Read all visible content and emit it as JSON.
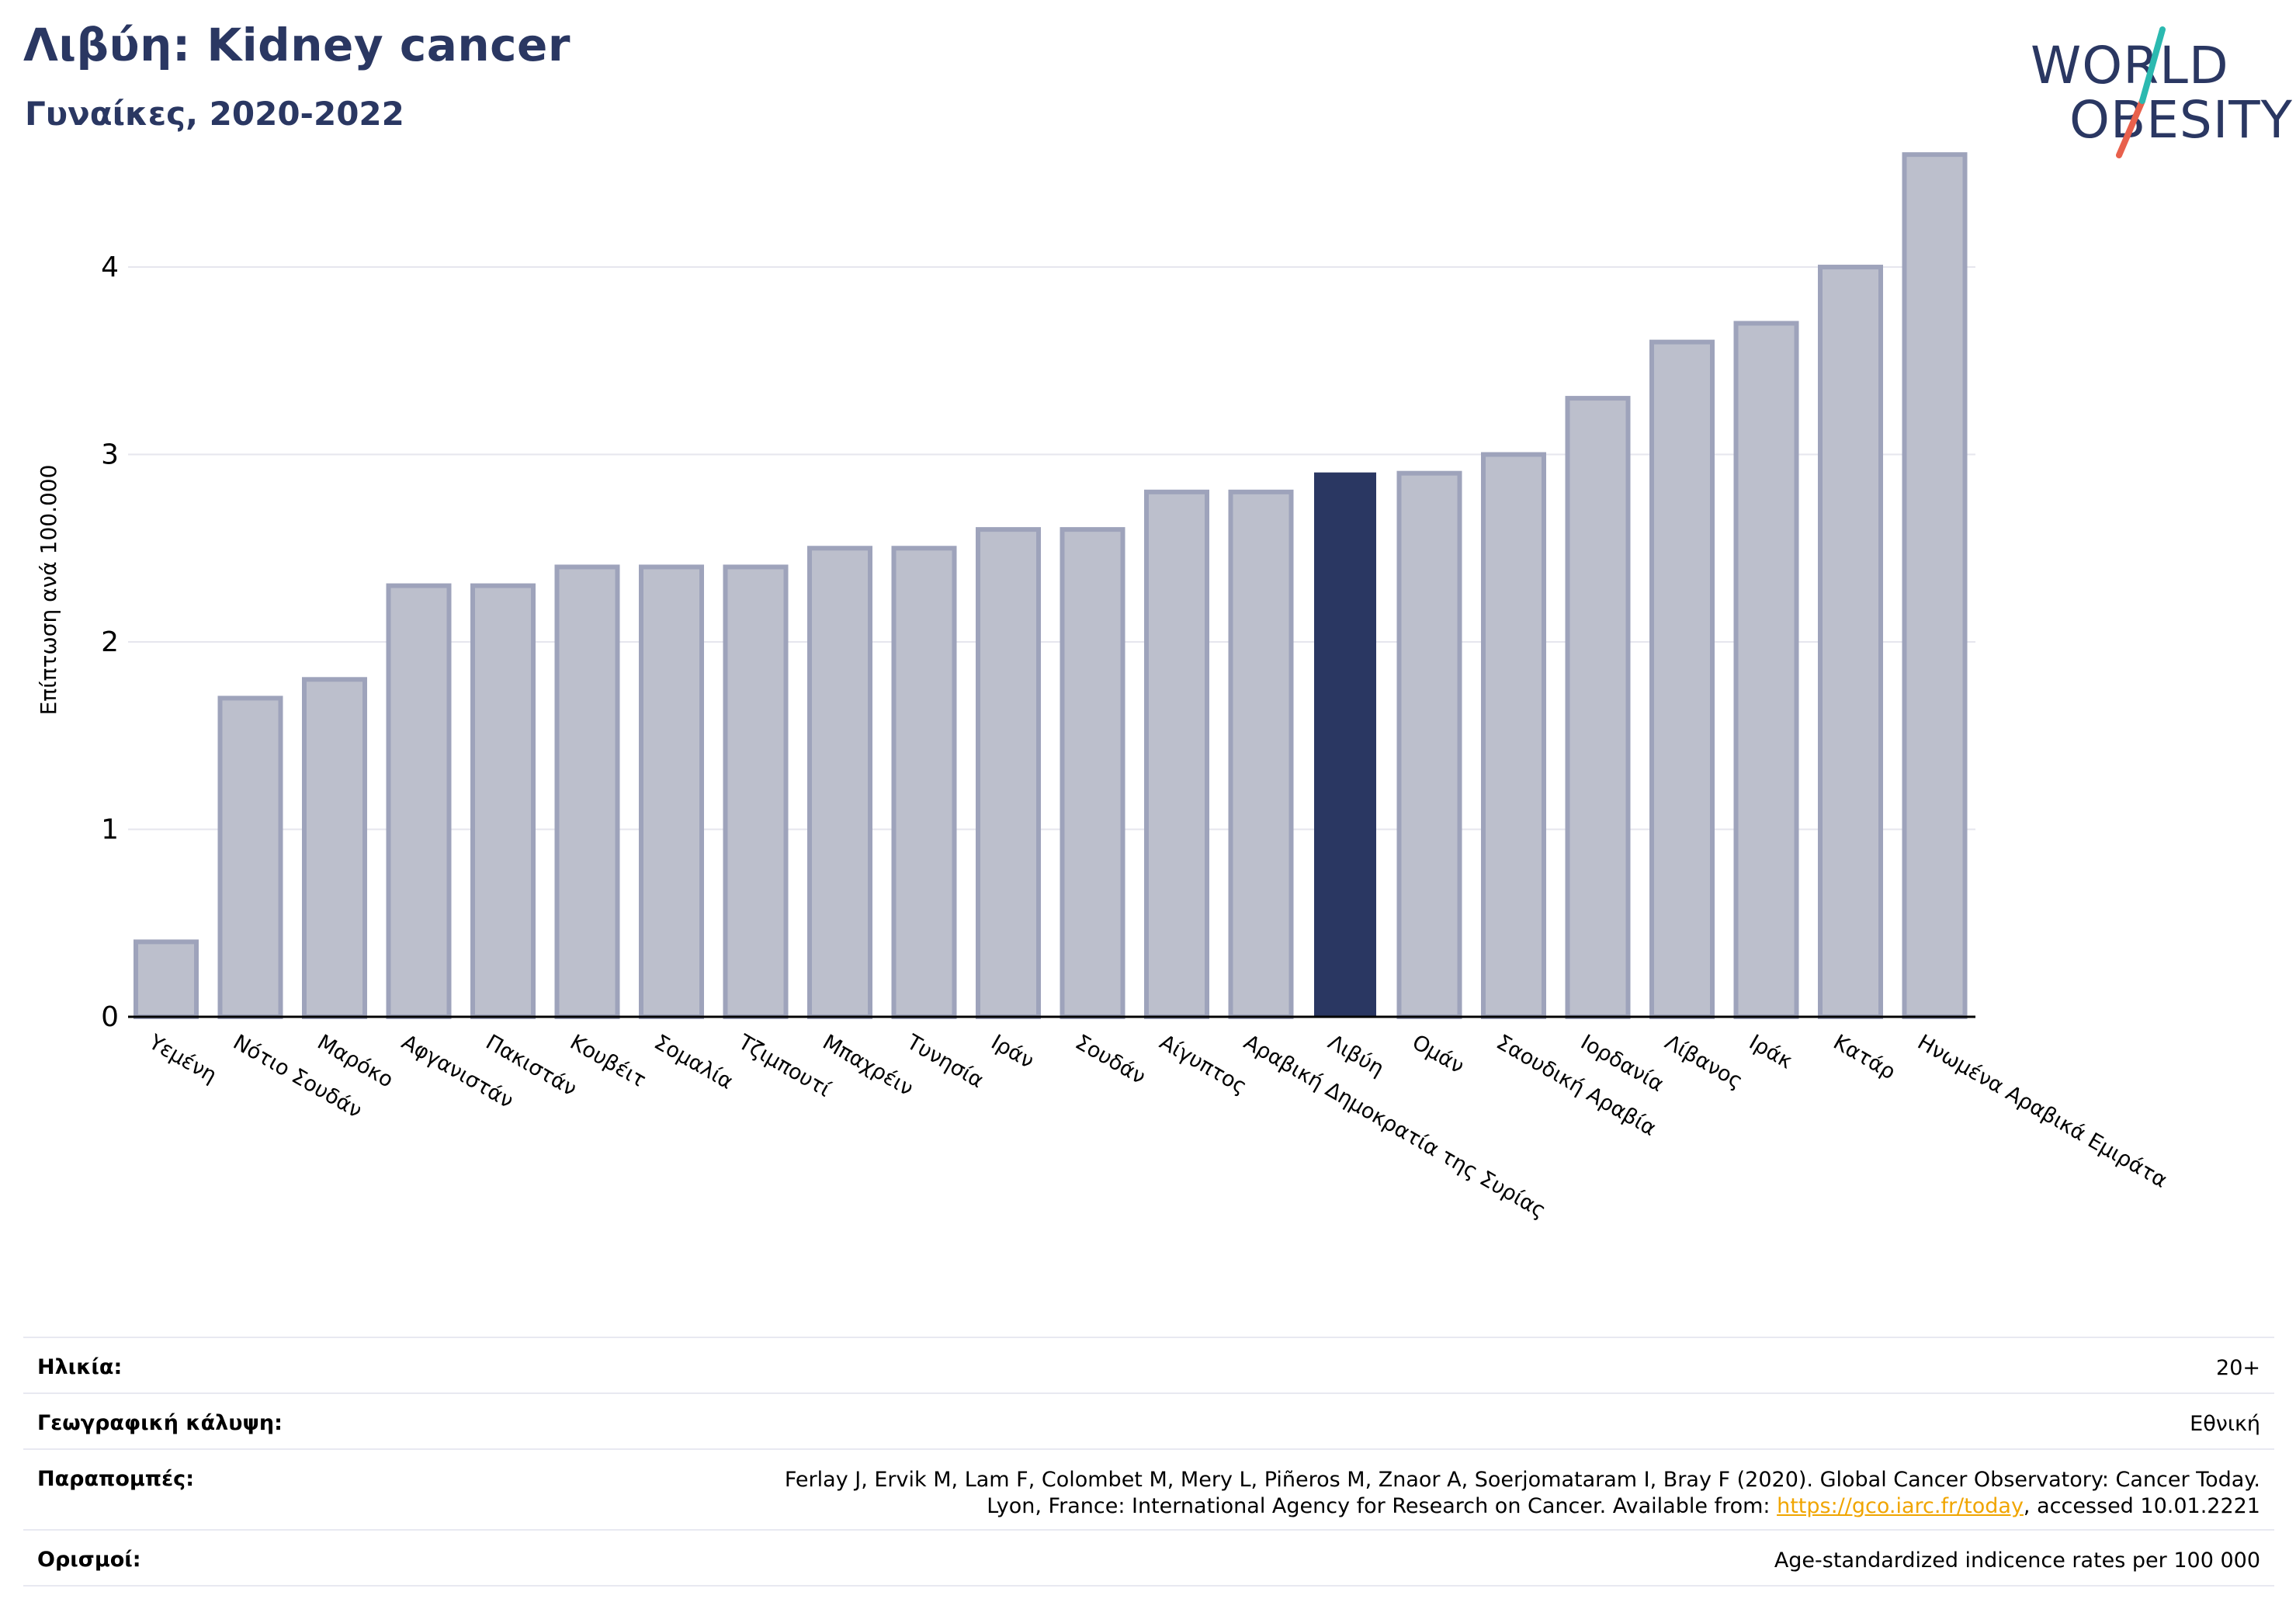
{
  "header": {
    "title": "Λιβύη: Kidney cancer",
    "subtitle": "Γυναίκες, 2020-2022"
  },
  "logo": {
    "line1": "WORLD",
    "line2": "OBESITY"
  },
  "chart_data": {
    "type": "bar",
    "title": "Λιβύη: Kidney cancer",
    "subtitle": "Γυναίκες, 2020-2022",
    "xlabel": "",
    "ylabel": "Επίπτωση ανά 100.000",
    "ylim": [
      0,
      4.7
    ],
    "yticks": [
      0,
      1,
      2,
      3,
      4
    ],
    "grid": true,
    "highlight": "Λιβύη",
    "colors": {
      "bar": "#bcbfcc",
      "bar_edge": "#9ea3bb",
      "highlight": "#2a3762",
      "axis": "#000000",
      "grid": "#e6e6ee"
    },
    "categories": [
      "Υεμένη",
      "Νότιο Σουδάν",
      "Μαρόκο",
      "Αφγανιστάν",
      "Πακιστάν",
      "Κουβέιτ",
      "Σομαλία",
      "Τζιμπουτί",
      "Μπαχρέιν",
      "Τυνησία",
      "Ιράν",
      "Σουδάν",
      "Αίγυπτος",
      "Αραβική Δημοκρατία της Συρίας",
      "Λιβύη",
      "Ομάν",
      "Σαουδική Αραβία",
      "Ιορδανία",
      "Λίβανος",
      "Ιράκ",
      "Κατάρ",
      "Ηνωμένα Αραβικά Εμιράτα"
    ],
    "values": [
      0.4,
      1.7,
      1.8,
      2.3,
      2.3,
      2.4,
      2.4,
      2.4,
      2.5,
      2.5,
      2.6,
      2.6,
      2.8,
      2.8,
      2.9,
      2.9,
      3.0,
      3.3,
      3.6,
      3.7,
      4.0,
      4.6
    ]
  },
  "info": {
    "age_label": "Ηλικία:",
    "age_value": "20+",
    "coverage_label": "Γεωγραφική κάλυψη:",
    "coverage_value": "Εθνική",
    "refs_label": "Παραπομπές:",
    "refs_line1": "Ferlay J, Ervik M, Lam F, Colombet M, Mery L, Piñeros M, Znaor A, Soerjomataram I, Bray F (2020). Global Cancer Observatory: Cancer Today.",
    "refs_line2_pre": "Lyon, France: International Agency for Research on Cancer. Available from: ",
    "refs_link": "https://gco.iarc.fr/today",
    "refs_line2_post": ", accessed 10.01.2221",
    "defs_label": "Ορισμοί:",
    "defs_value": "Age-standardized indicence rates per 100 000"
  }
}
